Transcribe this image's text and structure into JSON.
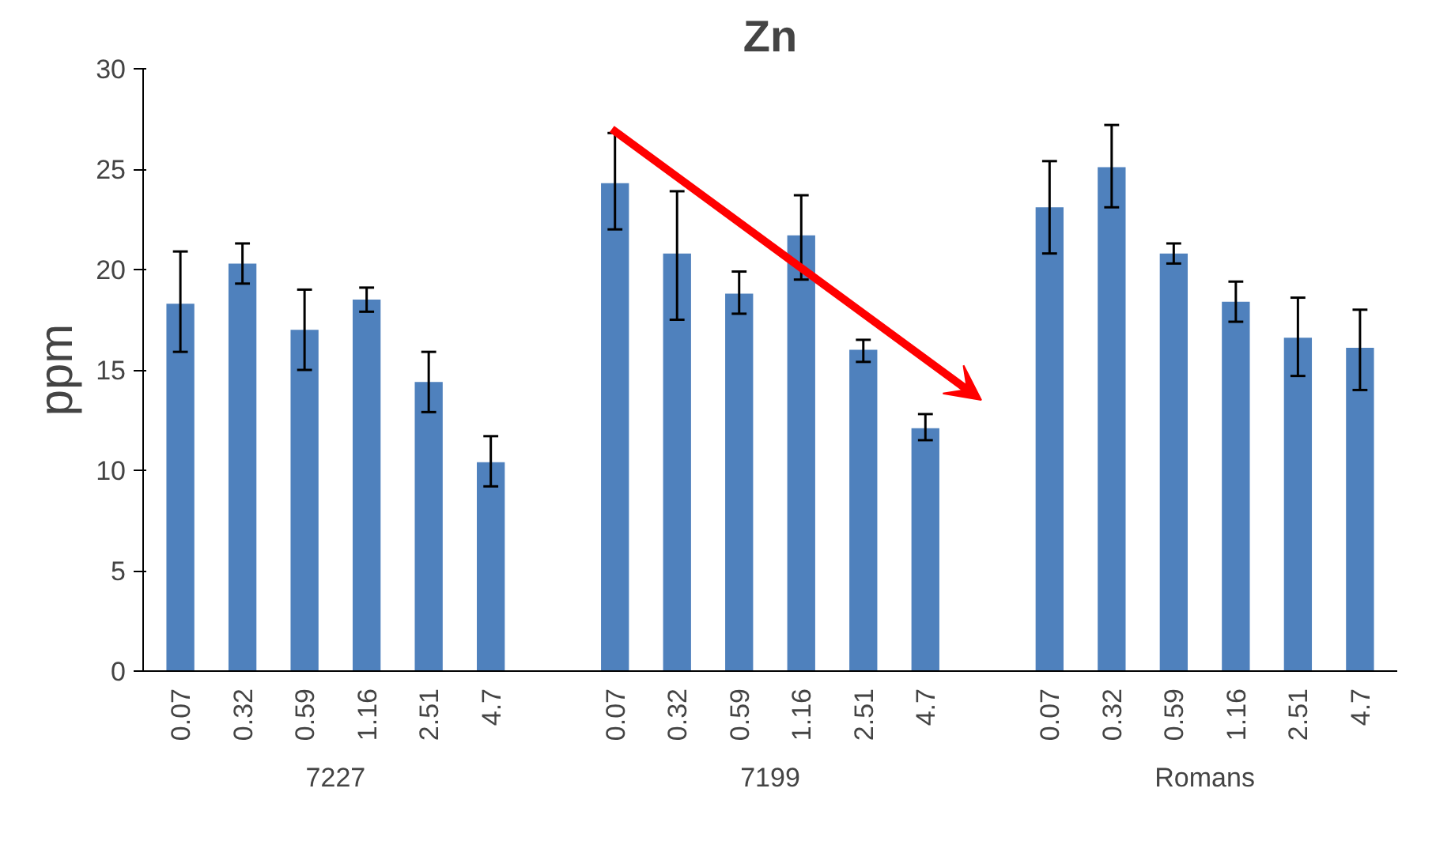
{
  "chart_data": {
    "type": "bar",
    "title": "Zn",
    "ylabel": "ppm",
    "categories": [
      "0.07",
      "0.32",
      "0.59",
      "1.16",
      "2.51",
      "4.7",
      null,
      "0.07",
      "0.32",
      "0.59",
      "1.16",
      "2.51",
      "4.7",
      null,
      "0.07",
      "0.32",
      "0.59",
      "1.16",
      "2.51",
      "4.7"
    ],
    "values": [
      18.3,
      20.3,
      17.0,
      18.5,
      14.4,
      10.4,
      null,
      24.3,
      20.8,
      18.8,
      21.7,
      16.0,
      12.1,
      null,
      23.1,
      25.1,
      20.8,
      18.4,
      16.6,
      16.1
    ],
    "errors": [
      [
        15.9,
        20.9
      ],
      [
        19.3,
        21.3
      ],
      [
        15.0,
        19.0
      ],
      [
        17.9,
        19.1
      ],
      [
        12.9,
        15.9
      ],
      [
        9.2,
        11.7
      ],
      null,
      [
        22.0,
        26.8
      ],
      [
        17.5,
        23.9
      ],
      [
        17.8,
        19.9
      ],
      [
        19.5,
        23.7
      ],
      [
        15.4,
        16.5
      ],
      [
        11.5,
        12.8
      ],
      null,
      [
        20.8,
        25.4
      ],
      [
        23.1,
        27.2
      ],
      [
        20.3,
        21.3
      ],
      [
        17.4,
        19.4
      ],
      [
        14.7,
        18.6
      ],
      [
        14.0,
        18.0
      ]
    ],
    "color": "#4f81bd",
    "ylim": [
      0,
      30
    ],
    "yticks": [
      0,
      5,
      10,
      15,
      20,
      25,
      30
    ],
    "grid": false,
    "annotations": [
      "7227",
      "7199",
      "Romans"
    ]
  }
}
